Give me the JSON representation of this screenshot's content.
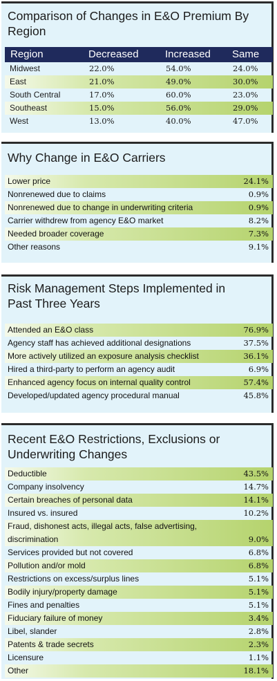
{
  "chart_data": [
    {
      "type": "table",
      "title": "Comparison of Changes in E&O Premium By Region",
      "columns": [
        "Region",
        "Decreased",
        "Increased",
        "Same"
      ],
      "rows": [
        {
          "region": "Midwest",
          "decreased": "22.0%",
          "increased": "54.0%",
          "same": "24.0%"
        },
        {
          "region": "East",
          "decreased": "21.0%",
          "increased": "49.0%",
          "same": "30.0%"
        },
        {
          "region": "South Central",
          "decreased": "17.0%",
          "increased": "60.0%",
          "same": "23.0%"
        },
        {
          "region": "Southeast",
          "decreased": "15.0%",
          "increased": "56.0%",
          "same": "29.0%"
        },
        {
          "region": "West",
          "decreased": "13.0%",
          "increased": "40.0%",
          "same": "47.0%"
        }
      ]
    },
    {
      "type": "table",
      "title": "Why Change in E&O Carriers",
      "rows": [
        {
          "label": "Lower price",
          "value": "24.1%"
        },
        {
          "label": "Nonrenewed due to claims",
          "value": "0.9%"
        },
        {
          "label": "Nonrenewed due to change in underwriting criteria",
          "value": "0.9%"
        },
        {
          "label": "Carrier withdrew from agency E&O market",
          "value": "8.2%"
        },
        {
          "label": "Needed broader coverage",
          "value": "7.3%"
        },
        {
          "label": "Other reasons",
          "value": "9.1%"
        }
      ]
    },
    {
      "type": "table",
      "title": "Risk Management Steps Implemented in Past Three Years",
      "rows": [
        {
          "label": "Attended an E&O class",
          "value": "76.9%"
        },
        {
          "label": "Agency staff has achieved additional designations",
          "value": "37.5%"
        },
        {
          "label": "More actively utilized an exposure analysis checklist",
          "value": "36.1%"
        },
        {
          "label": "Hired a third-party to perform an agency audit",
          "value": "6.9%"
        },
        {
          "label": "Enhanced agency focus on internal quality control",
          "value": "57.4%"
        },
        {
          "label": "Developed/updated agency procedural manual",
          "value": "45.8%"
        }
      ]
    },
    {
      "type": "table",
      "title": "Recent E&O Restrictions, Exclusions or Underwriting Changes",
      "rows": [
        {
          "label": "Deductible",
          "value": "43.5%"
        },
        {
          "label": "Company insolvency",
          "value": "14.7%"
        },
        {
          "label": "Certain breaches of personal data",
          "value": "14.1%"
        },
        {
          "label": "Insured vs. insured",
          "value": "10.2%"
        },
        {
          "label": "Fraud, dishonest acts, illegal acts, false advertising, discrimination",
          "value": "9.0%"
        },
        {
          "label": "Services provided but not covered",
          "value": "6.8%"
        },
        {
          "label": "Pollution and/or mold",
          "value": "6.8%"
        },
        {
          "label": "Restrictions on excess/surplus lines",
          "value": "5.1%"
        },
        {
          "label": "Bodily injury/property damage",
          "value": "5.1%"
        },
        {
          "label": "Fines and penalties",
          "value": "5.1%"
        },
        {
          "label": "Fiduciary failure of money",
          "value": "3.4%"
        },
        {
          "label": "Libel, slander",
          "value": "2.8%"
        },
        {
          "label": "Patents & trade secrets",
          "value": "2.3%"
        },
        {
          "label": "Licensure",
          "value": "1.1%"
        },
        {
          "label": "Other",
          "value": "18.1%"
        }
      ]
    }
  ]
}
